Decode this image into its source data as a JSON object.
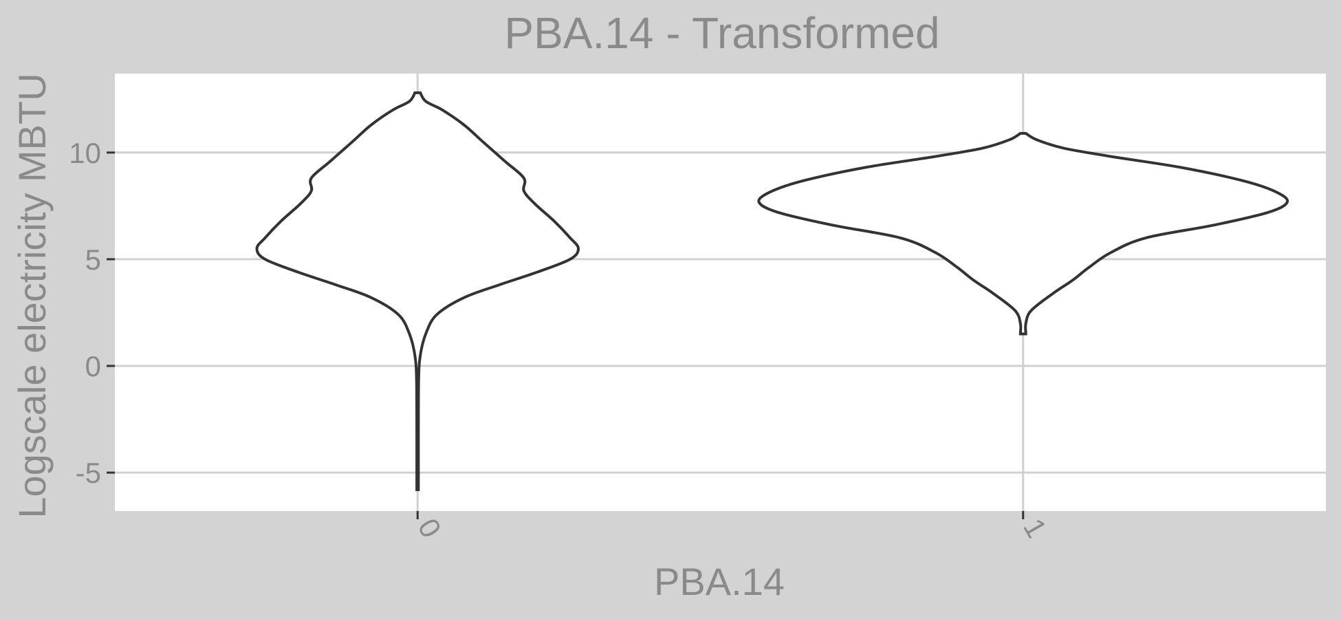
{
  "chart_data": {
    "type": "violin",
    "title": "PBA.14 - Transformed",
    "xlabel": "PBA.14",
    "ylabel": "Logscale electricity MBTU",
    "categories": [
      "0",
      "1"
    ],
    "ylim": [
      -6.8,
      13.7
    ],
    "yticks": [
      -5,
      0,
      5,
      10
    ],
    "ytick_labels": [
      "-5",
      "0",
      "5",
      "10"
    ],
    "grid": true,
    "legend": "none",
    "colors": {
      "background": "#d3d3d3",
      "panel": "#ffffff",
      "grid": "#d0d0d0",
      "outline": "#333333",
      "text": "#8a8a8a"
    },
    "series": [
      {
        "category": "0",
        "y_range": [
          -5.8,
          12.8
        ],
        "density_profile": [
          {
            "y": 12.8,
            "w": 0.01
          },
          {
            "y": 12.4,
            "w": 0.03
          },
          {
            "y": 12.0,
            "w": 0.09
          },
          {
            "y": 11.3,
            "w": 0.17
          },
          {
            "y": 10.5,
            "w": 0.24
          },
          {
            "y": 9.6,
            "w": 0.32
          },
          {
            "y": 8.8,
            "w": 0.39
          },
          {
            "y": 8.2,
            "w": 0.39
          },
          {
            "y": 7.6,
            "w": 0.43
          },
          {
            "y": 6.8,
            "w": 0.5
          },
          {
            "y": 6.0,
            "w": 0.56
          },
          {
            "y": 5.5,
            "w": 0.59
          },
          {
            "y": 5.0,
            "w": 0.56
          },
          {
            "y": 4.4,
            "w": 0.44
          },
          {
            "y": 3.8,
            "w": 0.3
          },
          {
            "y": 3.2,
            "w": 0.17
          },
          {
            "y": 2.4,
            "w": 0.07
          },
          {
            "y": 1.5,
            "w": 0.03
          },
          {
            "y": 0.5,
            "w": 0.01
          },
          {
            "y": -0.6,
            "w": 0.004
          },
          {
            "y": -3.0,
            "w": 0.003
          },
          {
            "y": -5.8,
            "w": 0.003
          }
        ]
      },
      {
        "category": "1",
        "y_range": [
          1.5,
          10.9
        ],
        "density_profile": [
          {
            "y": 10.9,
            "w": 0.01
          },
          {
            "y": 10.6,
            "w": 0.05
          },
          {
            "y": 10.2,
            "w": 0.15
          },
          {
            "y": 9.8,
            "w": 0.33
          },
          {
            "y": 9.3,
            "w": 0.58
          },
          {
            "y": 8.7,
            "w": 0.8
          },
          {
            "y": 8.2,
            "w": 0.92
          },
          {
            "y": 7.7,
            "w": 0.97
          },
          {
            "y": 7.2,
            "w": 0.9
          },
          {
            "y": 6.6,
            "w": 0.7
          },
          {
            "y": 6.0,
            "w": 0.45
          },
          {
            "y": 5.3,
            "w": 0.32
          },
          {
            "y": 4.6,
            "w": 0.24
          },
          {
            "y": 4.0,
            "w": 0.18
          },
          {
            "y": 3.4,
            "w": 0.11
          },
          {
            "y": 2.6,
            "w": 0.03
          },
          {
            "y": 2.0,
            "w": 0.01
          },
          {
            "y": 1.5,
            "w": 0.01
          }
        ]
      }
    ]
  }
}
